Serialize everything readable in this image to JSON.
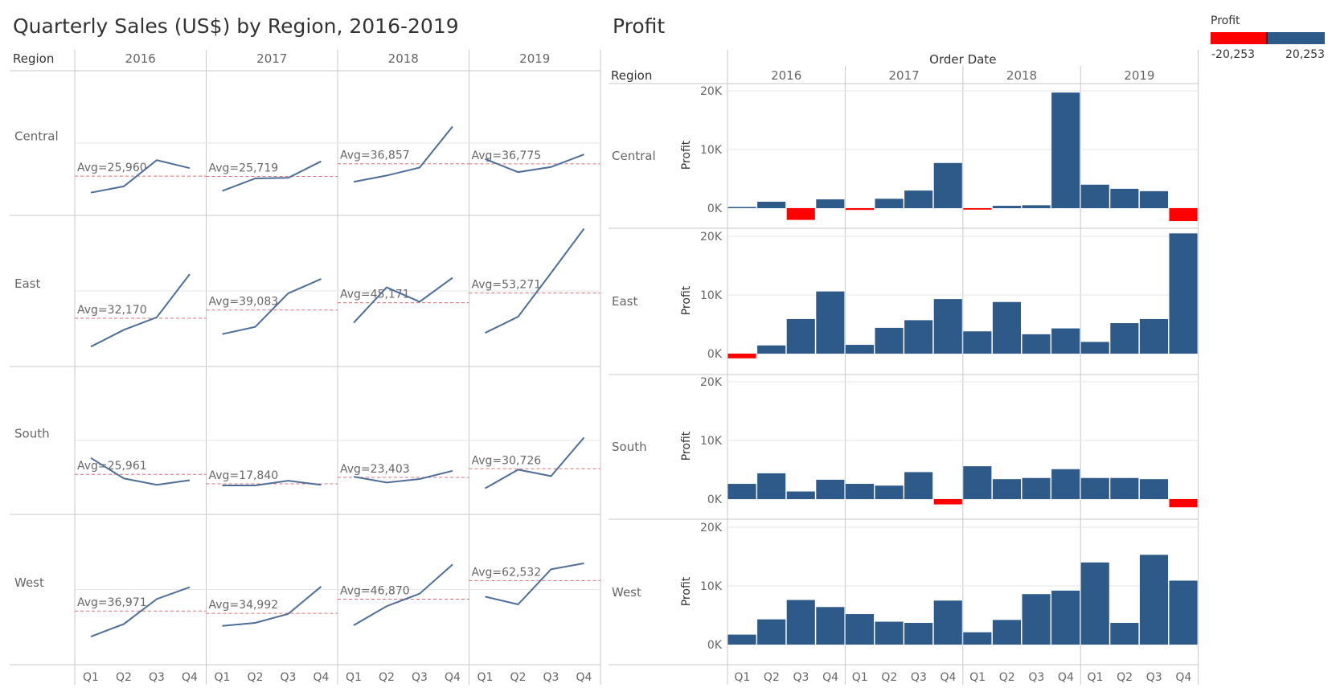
{
  "left": {
    "title": "Quarterly Sales (US$) by Region, 2016-2019",
    "row_header": "Region"
  },
  "right": {
    "title": "Profit",
    "row_header": "Region",
    "column_header": "Order Date"
  },
  "legend": {
    "title": "Profit",
    "min_label": "-20,253",
    "max_label": "20,253",
    "min_value": -20253,
    "max_value": 20253,
    "negative_color": "#ff0000",
    "positive_color": "#2e5a8a"
  },
  "colors": {
    "line": "#4e6e9a",
    "avg_line": "#e07070",
    "bar_positive": "#2e5a8a",
    "bar_negative": "#ff0000",
    "grid": "#e6e6e6",
    "divider": "#c8c8c8"
  },
  "chart_data": [
    {
      "type": "line",
      "title": "Quarterly Sales (US$) by Region, 2016-2019",
      "years": [
        "2016",
        "2017",
        "2018",
        "2019"
      ],
      "quarters": [
        "Q1",
        "Q2",
        "Q3",
        "Q4"
      ],
      "regions": [
        {
          "name": "Central",
          "years": [
            {
              "values": [
                11500,
                17000,
                40000,
                33000
              ],
              "avg": 25960,
              "avg_label": "Avg=25,960"
            },
            {
              "values": [
                13000,
                24000,
                24500,
                39000
              ],
              "avg": 25719,
              "avg_label": "Avg=25,719"
            },
            {
              "values": [
                21000,
                26500,
                33500,
                69500
              ],
              "avg": 36857,
              "avg_label": "Avg=36,857"
            },
            {
              "values": [
                41000,
                29500,
                34000,
                45000
              ],
              "avg": 36775,
              "avg_label": "Avg=36,775"
            }
          ]
        },
        {
          "name": "East",
          "years": [
            {
              "values": [
                8500,
                22500,
                33000,
                69000
              ],
              "avg": 32170,
              "avg_label": "Avg=32,170"
            },
            {
              "values": [
                19000,
                25000,
                53000,
                65000
              ],
              "avg": 39083,
              "avg_label": "Avg=39,083"
            },
            {
              "values": [
                28500,
                58000,
                46000,
                66000
              ],
              "avg": 45171,
              "avg_label": "Avg=45,171"
            },
            {
              "values": [
                20000,
                33500,
                70000,
                107000
              ],
              "avg": 53271,
              "avg_label": "Avg=53,271"
            }
          ]
        },
        {
          "name": "South",
          "years": [
            {
              "values": [
                40000,
                22500,
                17000,
                21000
              ],
              "avg": 25961,
              "avg_label": "Avg=25,961"
            },
            {
              "values": [
                16500,
                16500,
                20500,
                17000
              ],
              "avg": 17840,
              "avg_label": "Avg=17,840"
            },
            {
              "values": [
                24000,
                19000,
                22000,
                29000
              ],
              "avg": 23403,
              "avg_label": "Avg=23,403"
            },
            {
              "values": [
                14000,
                30000,
                24500,
                57500
              ],
              "avg": 30726,
              "avg_label": "Avg=30,726"
            }
          ]
        },
        {
          "name": "West",
          "years": [
            {
              "values": [
                15500,
                26000,
                47000,
                57000
              ],
              "avg": 36971,
              "avg_label": "Avg=36,971"
            },
            {
              "values": [
                24500,
                27000,
                34500,
                57500
              ],
              "avg": 34992,
              "avg_label": "Avg=34,992"
            },
            {
              "values": [
                25000,
                41000,
                51500,
                76000
              ],
              "avg": 46870,
              "avg_label": "Avg=46,870"
            },
            {
              "values": [
                49000,
                42500,
                72000,
                77000
              ],
              "avg": 62532,
              "avg_label": "Avg=62,532"
            }
          ]
        }
      ]
    },
    {
      "type": "bar",
      "title": "Profit",
      "x_header": "Order Date",
      "years": [
        "2016",
        "2017",
        "2018",
        "2019"
      ],
      "quarters": [
        "Q1",
        "Q2",
        "Q3",
        "Q4"
      ],
      "ylabel": "Profit",
      "ylim": [
        -3000,
        20000
      ],
      "yticks": [
        0,
        10000,
        20000
      ],
      "ytick_labels": [
        "0K",
        "10K",
        "20K"
      ],
      "regions": [
        {
          "name": "Central",
          "values": [
            200,
            1100,
            -2000,
            1500,
            -300,
            1600,
            3000,
            7700,
            -250,
            400,
            500,
            19700,
            4000,
            3300,
            2900,
            -2200
          ]
        },
        {
          "name": "East",
          "values": [
            -800,
            1400,
            5900,
            10600,
            1500,
            4400,
            5700,
            9300,
            3800,
            8800,
            3300,
            4300,
            2000,
            5200,
            5900,
            20500
          ]
        },
        {
          "name": "South",
          "values": [
            2600,
            4400,
            1300,
            3300,
            2600,
            2300,
            4600,
            -900,
            5600,
            3400,
            3600,
            5100,
            3600,
            3600,
            3400,
            -1400
          ]
        },
        {
          "name": "West",
          "values": [
            1700,
            4300,
            7600,
            6400,
            5200,
            3900,
            3700,
            7500,
            2100,
            4200,
            8600,
            9200,
            14000,
            3700,
            15300,
            10900
          ]
        }
      ]
    }
  ]
}
